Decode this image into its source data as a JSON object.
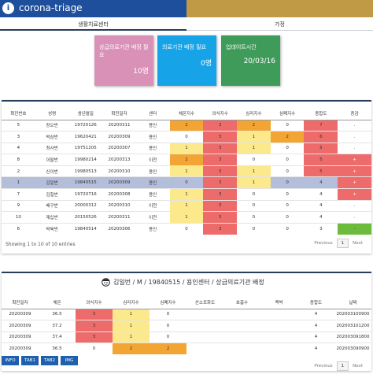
{
  "header": {
    "icon": "i",
    "title": "corona-triage"
  },
  "tabs": [
    "생활치료센터",
    "가정"
  ],
  "cards": [
    {
      "label": "상급의료기관 배정 필요",
      "value": "10명"
    },
    {
      "label": "의료기관 배정 필요",
      "value": "0명"
    },
    {
      "label": "업데이트시간",
      "value": "20/03/16"
    }
  ],
  "patient_table": {
    "columns": [
      "확진번호",
      "성명",
      "생년월일",
      "확진일자",
      "센터",
      "체온지수",
      "의식지수",
      "심리지수",
      "심폐지수",
      "종합도",
      "증감"
    ],
    "rows": [
      [
        "5",
        "장오번",
        "19720126",
        "20200311",
        "용인",
        2,
        3,
        2,
        0,
        7,
        "."
      ],
      [
        "3",
        "박삼번",
        "19620421",
        "20200309",
        "용인",
        0,
        3,
        1,
        2,
        6,
        "."
      ],
      [
        "4",
        "최사번",
        "19751205",
        "20200307",
        "용인",
        1,
        3,
        1,
        0,
        5,
        "."
      ],
      [
        "8",
        "이팔번",
        "19980214",
        "20200313",
        "이천",
        2,
        3,
        0,
        0,
        5,
        "+"
      ],
      [
        "2",
        "신이번",
        "19980513",
        "20200310",
        "용인",
        1,
        3,
        1,
        0,
        5,
        "+"
      ],
      [
        "1",
        "김일번",
        "19840515",
        "20200309",
        "용인",
        0,
        3,
        1,
        0,
        4,
        "+"
      ],
      [
        "7",
        "김칠번",
        "19720716",
        "20200308",
        "용인",
        1,
        3,
        0,
        0,
        4,
        "+"
      ],
      [
        "9",
        "배구번",
        "20000312",
        "20200310",
        "이천",
        1,
        3,
        0,
        0,
        4,
        "."
      ],
      [
        "10",
        "재십번",
        "20150526",
        "20200311",
        "이천",
        1,
        3,
        0,
        0,
        4,
        "."
      ],
      [
        "6",
        "박육번",
        "19840514",
        "20200306",
        "용인",
        0,
        3,
        0,
        0,
        3,
        "-"
      ]
    ],
    "info": "Showing 1 to 10 of 10 entries",
    "pagination": {
      "previous": "Previous",
      "page": "1",
      "next": "Next"
    }
  },
  "detail": {
    "title": "김일번 / M / 19840515 / 용인센터 / 상급의료기관 배정",
    "columns": [
      "확진일자",
      "체온",
      "의식지수",
      "심리지수",
      "심폐지수",
      "산소포화도",
      "호흡수",
      "맥박",
      "종합도",
      "날짜"
    ],
    "rows": [
      [
        "20200309",
        "36.5",
        3,
        1,
        0,
        null,
        null,
        null,
        4,
        "202003100900"
      ],
      [
        "20200309",
        "37.2",
        3,
        1,
        0,
        null,
        null,
        null,
        4,
        "202003101200"
      ],
      [
        "20200309",
        "37.4",
        3,
        1,
        0,
        null,
        null,
        null,
        4,
        "202003091800"
      ],
      [
        "20200309",
        "36.5",
        0,
        2,
        2,
        null,
        null,
        null,
        4,
        "202003090900"
      ]
    ],
    "pagination": {
      "previous": "Previous",
      "page": "1",
      "next": "Next"
    }
  },
  "bottom_tabs": [
    "INFO",
    "TAB1",
    "TAB2",
    "IMG"
  ]
}
